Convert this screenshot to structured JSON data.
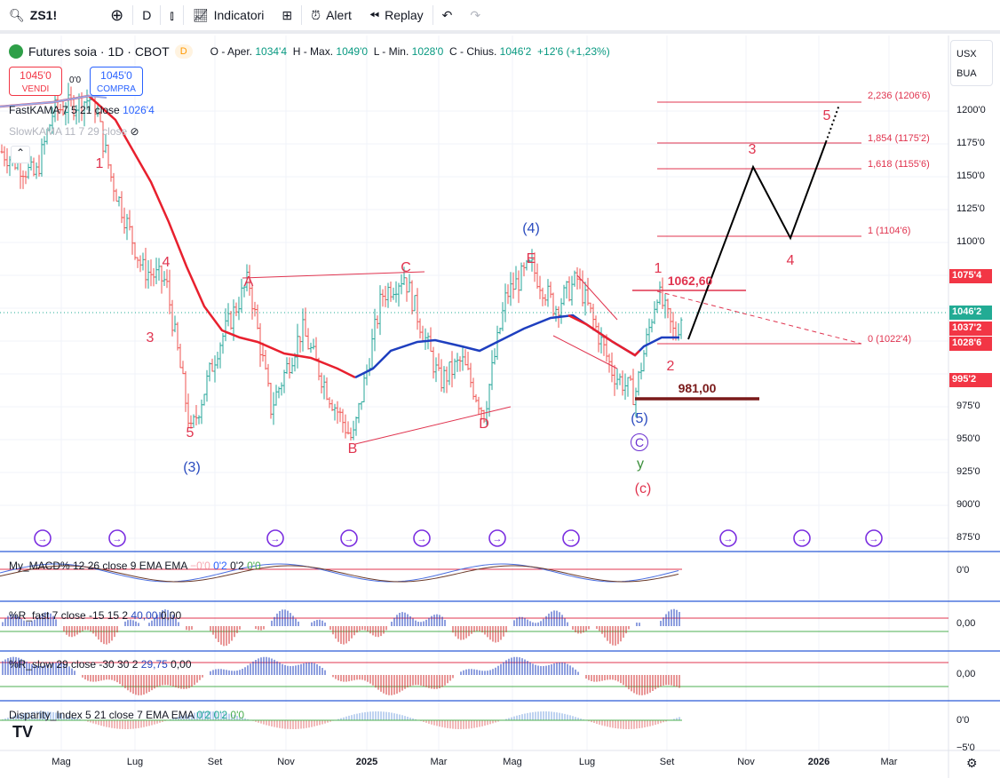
{
  "toolbar": {
    "symbol": "ZS1!",
    "interval": "D",
    "indicators": "Indicatori",
    "alert": "Alert",
    "replay": "Replay"
  },
  "legend": {
    "title": "Futures soia · 1D · CBOT",
    "flag": "D",
    "o_label": "O - Aper.",
    "o": "1034'4",
    "h_label": "H - Max.",
    "h": "1049'0",
    "l_label": "L - Min.",
    "l": "1028'0",
    "c_label": "C - Chius.",
    "c": "1046'2",
    "change": "+12'6 (+1,23%)"
  },
  "trade": {
    "sell_price": "1045'0",
    "sell_label": "VENDI",
    "spread": "0'0",
    "buy_price": "1045'0",
    "buy_label": "COMPRA"
  },
  "studies": {
    "fast_kama": "FastKAMA 7 5 21 close",
    "fast_kama_val": "1026'4",
    "slow_kama": "SlowKAMA 11 7 29 close"
  },
  "indicators": {
    "macd": {
      "name": "My_MACD% 12 26 close 9 EMA EMA",
      "v1": "−0'0",
      "v2": "0'2",
      "v3": "0'2",
      "v4": "0'0",
      "axis": "0'0"
    },
    "r_fast": {
      "name": "%R_fast 7 close -15 15 2",
      "v1": "40,00",
      "v2": "0,00",
      "axis": "0,00"
    },
    "r_slow": {
      "name": "%R_slow 29 close -30 30 2",
      "v1": "29,75",
      "v2": "0,00",
      "axis": "0,00"
    },
    "disparity": {
      "name": "Disparity_Index 5 21 close 7 EMA EMA",
      "v1": "0'2",
      "v2": "0'2",
      "v3": "0'0",
      "axis": "0'0",
      "axis2": "−5'0"
    }
  },
  "scale": {
    "currency": "USX",
    "unit": "BUA",
    "ticks": [
      "1200'0",
      "1175'0",
      "1150'0",
      "1125'0",
      "1100'0",
      "975'0",
      "950'0",
      "925'0",
      "900'0",
      "875'0"
    ],
    "badges": [
      {
        "text": "1075'4",
        "color": "#f23645"
      },
      {
        "text": "1046'2",
        "color": "#22ab94"
      },
      {
        "text": "1037'2",
        "color": "#f23645"
      },
      {
        "text": "1028'6",
        "color": "#f23645"
      },
      {
        "text": "995'2",
        "color": "#f23645"
      }
    ]
  },
  "time_axis": [
    "Mag",
    "Lug",
    "Set",
    "Nov",
    "2025",
    "Mar",
    "Mag",
    "Lug",
    "Set",
    "Nov",
    "2026",
    "Mar"
  ],
  "fib": [
    "2,236 (1206'6)",
    "1,854 (1175'2)",
    "1,618 (1155'6)",
    "1 (1104'6)",
    "0 (1022'4)"
  ],
  "levels": {
    "high": "1062,60",
    "low": "981,00"
  },
  "waves": [
    "1",
    "4",
    "3",
    "5",
    "(3)",
    "A",
    "B",
    "C",
    "D",
    "E",
    "(4)",
    "1",
    "2",
    "(5)",
    "C",
    "y",
    "(c)",
    "3",
    "4",
    "5"
  ],
  "chart_data": {
    "type": "candlestick",
    "title": "Futures soia · 1D · CBOT",
    "ylim": [
      870,
      1215
    ],
    "pivots": [
      [
        "Apr 2024",
        1170
      ],
      [
        "Jun 2024",
        1205
      ],
      [
        "Jul 2024",
        1140
      ],
      [
        "Aug 2024",
        955
      ],
      [
        "Sep 2024",
        1072
      ],
      [
        "Oct 2024",
        974
      ],
      [
        "Nov 2024",
        1034
      ],
      [
        "Dec 2024",
        949
      ],
      [
        "Jan 2025",
        1075
      ],
      [
        "Mar 2025",
        994
      ],
      [
        "Apr 2025",
        970
      ],
      [
        "May 2025",
        1082
      ],
      [
        "Jun 2025",
        1072
      ],
      [
        "Jul 2025",
        1001
      ],
      [
        "Aug 2025",
        984
      ],
      [
        "Aug 2025",
        1063
      ],
      [
        "Sep 2025",
        1028
      ],
      [
        "Sep 2025",
        1046
      ]
    ]
  }
}
